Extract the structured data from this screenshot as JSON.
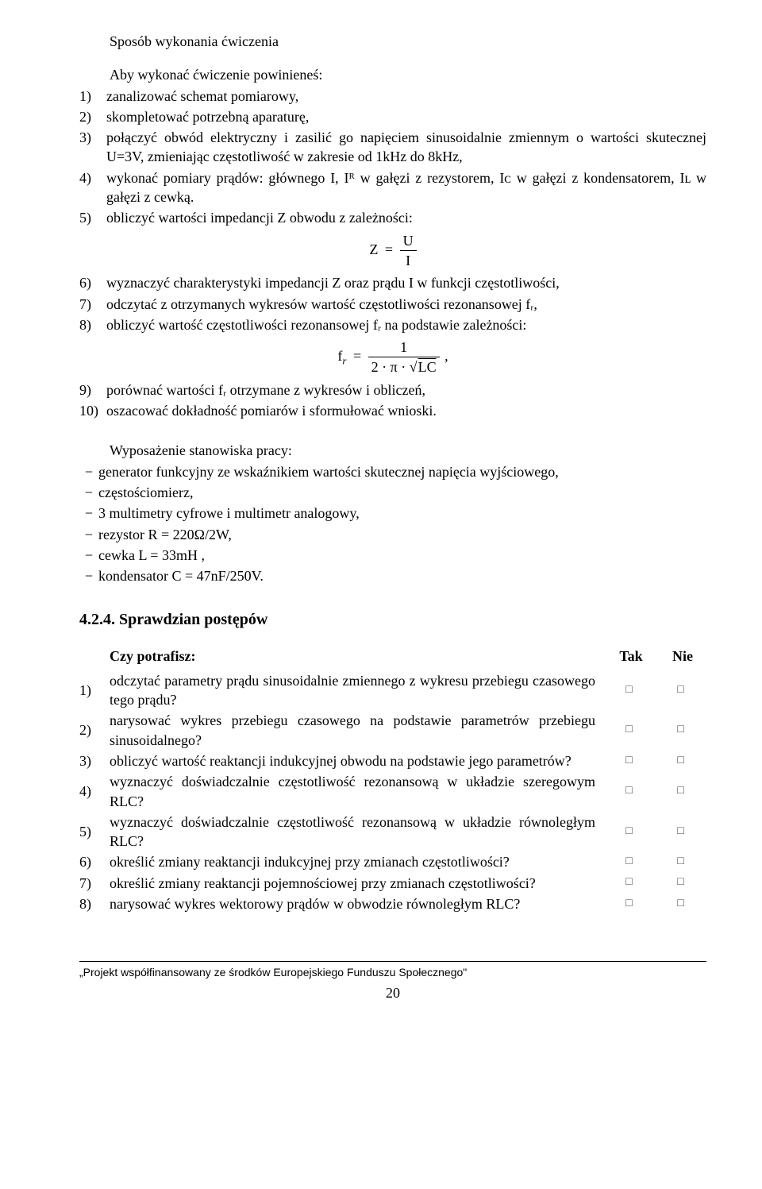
{
  "title": "Sposób wykonania ćwiczenia",
  "intro": "Aby wykonać ćwiczenie powinieneś:",
  "steps": [
    {
      "n": "1)",
      "t": "zanalizować schemat pomiarowy,"
    },
    {
      "n": "2)",
      "t": "skompletować potrzebną aparaturę,"
    },
    {
      "n": "3)",
      "t": "połączyć obwód elektryczny i zasilić go napięciem sinusoidalnie zmiennym o wartości skutecznej U=3V, zmieniając częstotliwość w zakresie od 1kHz do 8kHz,"
    },
    {
      "n": "4)",
      "t": "wykonać pomiary prądów: głównego I, Iᴿ w gałęzi z rezystorem, Iᴄ w gałęzi z kondensatorem, Iʟ w gałęzi z  cewką."
    },
    {
      "n": "5)",
      "t": "obliczyć wartości impedancji Z obwodu z zależności:"
    }
  ],
  "formula1_left": "Z",
  "formula1_eq": "=",
  "formula1_num": "U",
  "formula1_den": "I",
  "steps2": [
    {
      "n": "6)",
      "t": "wyznaczyć charakterystyki impedancji Z oraz prądu I w funkcji częstotliwości,"
    },
    {
      "n": "7)",
      "t": "odczytać z otrzymanych wykresów wartość częstotliwości rezonansowej fᵣ,"
    },
    {
      "n": "8)",
      "t": "obliczyć wartość częstotliwości rezonansowej fᵣ na podstawie zależności:"
    }
  ],
  "formula2_left": "f",
  "formula2_sub": "r",
  "formula2_eq": "=",
  "formula2_num": "1",
  "formula2_den_pre": "2 · π · ",
  "formula2_root": "√",
  "formula2_under": "LC",
  "formula2_comma": ",",
  "steps3": [
    {
      "n": "9)",
      "t": "porównać wartości  fᵣ otrzymane z wykresów i obliczeń,"
    },
    {
      "n": "10)",
      "t": "oszacować dokładność pomiarów i sformułować wnioski."
    }
  ],
  "equip_title": "Wyposażenie stanowiska pracy:",
  "equip": [
    "generator funkcyjny ze wskaźnikiem wartości skutecznej napięcia wyjściowego,",
    "częstościomierz,",
    "3 multimetry cyfrowe i multimetr analogowy,",
    "rezystor R = 220Ω/2W,",
    "cewka L = 33mH ,",
    "kondensator C = 47nF/250V."
  ],
  "h3": "4.2.4. Sprawdzian postępów",
  "quiz_header": {
    "text": "Czy potrafisz:",
    "tak": "Tak",
    "nie": "Nie"
  },
  "quiz": [
    {
      "n": "1)",
      "t": "odczytać parametry prądu sinusoidalnie zmiennego z wykresu przebiegu czasowego tego prądu?"
    },
    {
      "n": "2)",
      "t": "narysować wykres przebiegu czasowego na podstawie parametrów przebiegu sinusoidalnego?"
    },
    {
      "n": "3)",
      "t": "obliczyć wartość reaktancji indukcyjnej obwodu  na podstawie jego parametrów?"
    },
    {
      "n": "4)",
      "t": "wyznaczyć doświadczalnie częstotliwość rezonansową w układzie szeregowym RLC?"
    },
    {
      "n": "5)",
      "t": "wyznaczyć doświadczalnie częstotliwość rezonansową w układzie równoległym RLC?"
    },
    {
      "n": "6)",
      "t": "określić zmiany reaktancji indukcyjnej przy zmianach częstotliwości?"
    },
    {
      "n": "7)",
      "t": "określić zmiany reaktancji pojemnościowej przy zmianach częstotliwości?"
    },
    {
      "n": "8)",
      "t": "narysować wykres wektorowy prądów w obwodzie równoległym RLC?"
    }
  ],
  "footer": "„Projekt współfinansowany ze środków Europejskiego Funduszu Społecznego\"",
  "page": "20",
  "checkbox_glyph": "□",
  "dash": "−"
}
